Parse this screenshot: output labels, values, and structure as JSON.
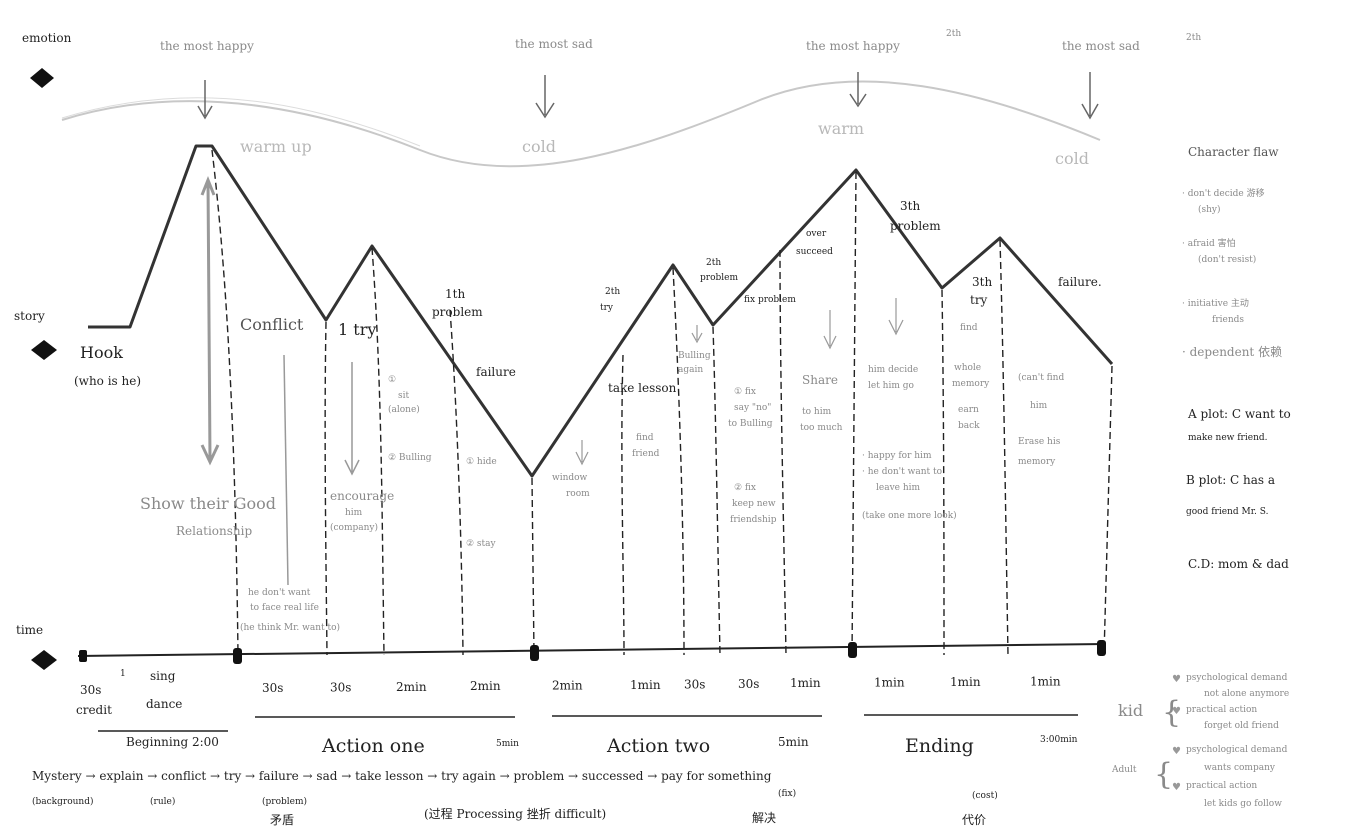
{
  "axes": {
    "emotion": "emotion",
    "story": "story",
    "time": "time"
  },
  "emotion": {
    "peak1": "the most happy",
    "valley1": "the most sad",
    "peak2": "the most happy",
    "peak2_sup": "2th",
    "valley2": "the most sad",
    "valley2_sup": "2th",
    "warm1": "warm up",
    "cold1": "cold",
    "warm2": "warm",
    "cold2": "cold"
  },
  "story": {
    "hook": "Hook",
    "hook_sub": "(who is he)",
    "relationship1": "Show their Good",
    "relationship2": "Relationship",
    "conflict": "Conflict",
    "face1": "he don't want",
    "face2": "to face real life",
    "face3": "(he think Mr. want to)",
    "try1": "1 try",
    "encourage1": "encourage",
    "encourage2": "him",
    "encourage3": "(company)",
    "sit1": "①",
    "sit2": "sit",
    "sit3": "(alone)",
    "bully1": "② Bulling",
    "problem1a": "1th",
    "problem1b": "problem",
    "failure1": "failure",
    "hide": "① hide",
    "stay": "② stay",
    "window1": "window",
    "window2": "room",
    "try2a": "2th",
    "try2b": "try",
    "takelesson": "take lesson",
    "findfriend1": "find",
    "findfriend2": "friend",
    "problem2a": "2th",
    "problem2b": "problem",
    "bullying1": "Bulling",
    "bullying2": "again",
    "fixproblem": "fix problem",
    "fix1a": "① fix",
    "fix1b": "say \"no\"",
    "fix1c": "to Bulling",
    "fix2a": "② fix",
    "fix2b": "keep new",
    "fix2c": "friendship",
    "over1": "over",
    "over2": "succeed",
    "share1": "Share",
    "share2": "to him",
    "share3": "too much",
    "problem3a": "3th",
    "problem3b": "problem",
    "decide1": "him decide",
    "decide2": "let him go",
    "happy1": "· happy for him",
    "happy2": "· he don't want to",
    "happy3": "leave him",
    "happy4": "(take one more look)",
    "try3a": "3th",
    "try3b": "try",
    "try3c": "find",
    "memory1": "whole",
    "memory2": "memory",
    "memory3": "earn",
    "memory4": "back",
    "failure2": "failure.",
    "cantfind1": "(can't find",
    "cantfind2": "him",
    "cantfind3": "Erase his",
    "cantfind4": "memory"
  },
  "time": {
    "seg1": "30s",
    "seg1_sup": "1",
    "seg1_sub": "credit",
    "seg2": "sing",
    "seg2_sub": "dance",
    "durations": [
      "30s",
      "30s",
      "2min",
      "2min",
      "2min",
      "1min",
      "30s",
      "30s",
      "1min",
      "1min",
      "1min",
      "1min"
    ]
  },
  "acts": {
    "beginning": "Beginning 2:00",
    "action1": "Action one",
    "action1_time": "5min",
    "action2": "Action two",
    "action2_time": "5min",
    "ending": "Ending",
    "ending_time": "3:00min"
  },
  "flow": {
    "sequence": "Mystery → explain → conflict → try → failure → sad → take lesson → try again → problem → successed → pay for something",
    "mystery_sub": "(background)",
    "explain_sub": "(rule)",
    "conflict_sub": "(problem)",
    "conflict_cn": "矛盾",
    "process": "(过程 Processing 挫折 difficult)",
    "fix_sub": "(fix)",
    "fix_cn": "解决",
    "cost_sub": "(cost)",
    "cost_cn": "代价"
  },
  "sidebar": {
    "flaw_title": "Character flaw",
    "flaw1": "· don't decide 游移",
    "flaw1_sub": "(shy)",
    "flaw2": "· afraid 害怕",
    "flaw2_sub": "(don't resist)",
    "flaw3": "· initiative 主动",
    "flaw3_sub": "friends",
    "flaw4": "· dependent 依赖",
    "aplot1": "A plot: C want to",
    "aplot2": "make new friend.",
    "bplot1": "B plot: C has a",
    "bplot2": "good friend Mr. S.",
    "cd": "C.D: mom & dad",
    "kid": "kid",
    "kid1": "psychological demand",
    "kid2": "not alone anymore",
    "kid3": "practical action",
    "kid4": "forget old friend",
    "adult": "Adult",
    "adult1": "psychological demand",
    "adult2": "wants company",
    "adult3": "practical action",
    "adult4": "let kids go follow"
  },
  "colors": {
    "ink": "#222222",
    "pencil": "#8a8a8a",
    "curve": "#c8c8c8"
  }
}
